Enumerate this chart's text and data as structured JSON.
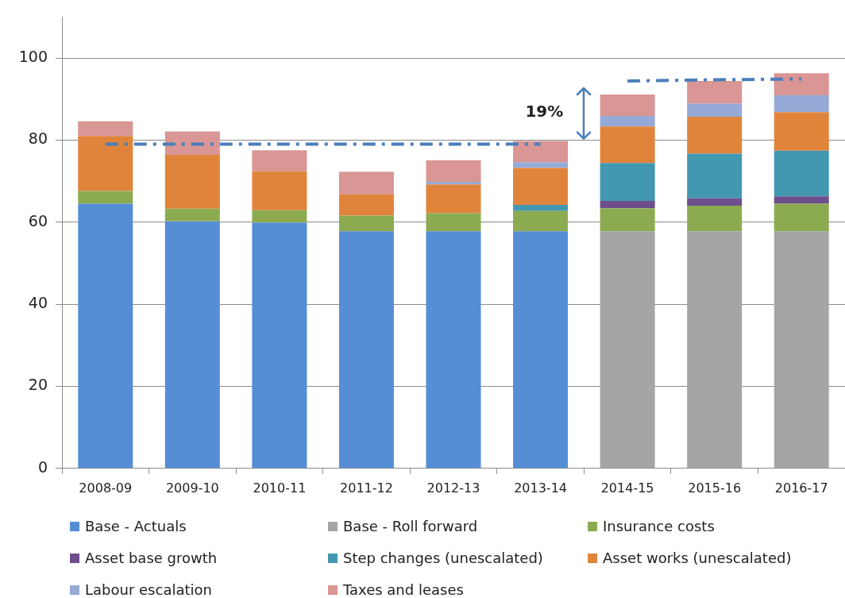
{
  "chart_data": {
    "type": "bar",
    "stacked": true,
    "categories": [
      "2008-09",
      "2009-10",
      "2010-11",
      "2011-12",
      "2012-13",
      "2013-14",
      "2014-15",
      "2015-16",
      "2016-17"
    ],
    "series": [
      {
        "name": "Base - Actuals",
        "color": "#558ed5",
        "values": [
          64.5,
          60.2,
          59.9,
          57.8,
          57.8,
          57.8,
          null,
          null,
          null
        ]
      },
      {
        "name": "Base - Roll forward",
        "color": "#a5a5a5",
        "values": [
          null,
          null,
          null,
          null,
          null,
          null,
          57.8,
          57.8,
          57.8
        ]
      },
      {
        "name": "Insurance costs",
        "color": "#8cab50",
        "values": [
          3.1,
          3.1,
          3.0,
          3.8,
          4.4,
          4.9,
          5.6,
          6.2,
          6.7
        ]
      },
      {
        "name": "Asset base growth",
        "color": "#6e4f8c",
        "values": [
          null,
          null,
          null,
          null,
          null,
          null,
          1.8,
          1.8,
          1.8
        ]
      },
      {
        "name": "Step changes (unescalated)",
        "color": "#4298b0",
        "values": [
          null,
          null,
          null,
          null,
          null,
          1.5,
          9.2,
          10.9,
          11.1
        ]
      },
      {
        "name": "Asset works (unescalated)",
        "color": "#e0843c",
        "values": [
          13.4,
          13.1,
          9.5,
          5.2,
          7.0,
          9.0,
          8.9,
          9.0,
          9.4
        ]
      },
      {
        "name": "Labour escalation",
        "color": "#95aad6",
        "values": [
          null,
          null,
          null,
          null,
          0.6,
          1.4,
          2.6,
          3.2,
          4.1
        ]
      },
      {
        "name": "Taxes and leases",
        "color": "#d99694",
        "values": [
          3.6,
          5.7,
          5.1,
          5.5,
          5.3,
          5.2,
          5.2,
          5.5,
          5.4
        ]
      },
      {
        "type": "line",
        "color": "#4a7ebb",
        "line_style": "dashed",
        "marker": "none",
        "values": [
          79.0,
          79.0,
          79.0,
          79.0,
          79.0,
          79.0,
          null,
          null,
          null
        ]
      },
      {
        "type": "line",
        "color": "#4a7ebb",
        "line_style": "dashed",
        "marker": "none",
        "values": [
          null,
          null,
          null,
          null,
          null,
          null,
          94.4,
          94.7,
          94.9
        ]
      }
    ],
    "ylim": [
      0,
      110
    ],
    "yticks": [
      0,
      20,
      40,
      60,
      80,
      100
    ],
    "grid": "y",
    "legend": "bottom",
    "annotations": [
      "19%"
    ]
  }
}
